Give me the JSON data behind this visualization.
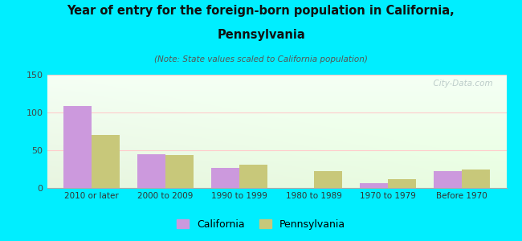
{
  "title_line1": "Year of entry for the foreign-born population in California,",
  "title_line2": "Pennsylvania",
  "subtitle": "(Note: State values scaled to California population)",
  "categories": [
    "2010 or later",
    "2000 to 2009",
    "1990 to 1999",
    "1980 to 1989",
    "1970 to 1979",
    "Before 1970"
  ],
  "california_values": [
    108,
    45,
    27,
    0,
    6,
    22
  ],
  "pennsylvania_values": [
    70,
    44,
    31,
    22,
    12,
    24
  ],
  "california_color": "#cc99dd",
  "pennsylvania_color": "#c8c87a",
  "background_color": "#00eeff",
  "chart_bg_top": "#f5fff5",
  "chart_bg_bottom": "#e8f5e0",
  "ylim": [
    0,
    150
  ],
  "yticks": [
    0,
    50,
    100,
    150
  ],
  "bar_width": 0.38,
  "watermark": "  City-Data.com"
}
